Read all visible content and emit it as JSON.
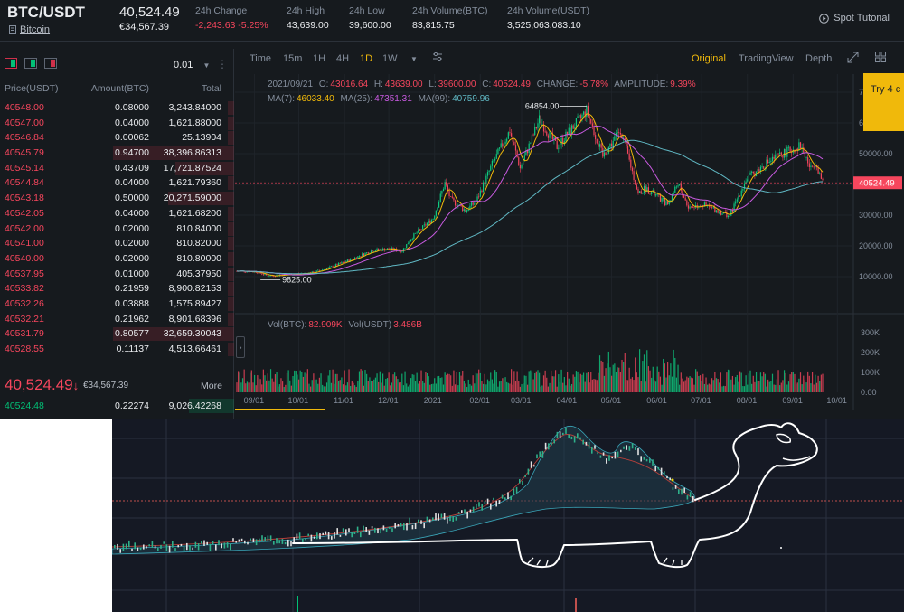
{
  "header": {
    "pair": "BTC/USDT",
    "coin_name": "Bitcoin",
    "last_price": "40,524.49",
    "last_price_eur": "€34,567.39",
    "change_label": "24h Change",
    "change_value": "-2,243.63 -5.25%",
    "high_label": "24h High",
    "high_value": "43,639.00",
    "low_label": "24h Low",
    "low_value": "39,600.00",
    "vol_btc_label": "24h Volume(BTC)",
    "vol_btc_value": "83,815.75",
    "vol_usdt_label": "24h Volume(USDT)",
    "vol_usdt_value": "3,525,063,083.10",
    "tutorial": "Spot Tutorial",
    "colors": {
      "up": "#02c076",
      "down": "#f6465d",
      "accent": "#f0b90b",
      "bg": "#161a1e"
    }
  },
  "orderbook": {
    "precision": "0.01",
    "col_price": "Price(USDT)",
    "col_amount": "Amount(BTC)",
    "col_total": "Total",
    "asks": [
      {
        "price": "40548.00",
        "amount": "0.08000",
        "total": "3,243.84000",
        "depth": 0.02
      },
      {
        "price": "40547.00",
        "amount": "0.04000",
        "total": "1,621.88000",
        "depth": 0.02
      },
      {
        "price": "40546.84",
        "amount": "0.00062",
        "total": "25.13904",
        "depth": 0.02
      },
      {
        "price": "40545.79",
        "amount": "0.94700",
        "total": "38,396.86313",
        "depth": 1.0
      },
      {
        "price": "40545.14",
        "amount": "0.43709",
        "total": "17,721.87524",
        "depth": 0.47
      },
      {
        "price": "40544.84",
        "amount": "0.04000",
        "total": "1,621.79360",
        "depth": 0.02
      },
      {
        "price": "40543.18",
        "amount": "0.50000",
        "total": "20,271.59000",
        "depth": 0.53
      },
      {
        "price": "40542.05",
        "amount": "0.04000",
        "total": "1,621.68200",
        "depth": 0.02
      },
      {
        "price": "40542.00",
        "amount": "0.02000",
        "total": "810.84000",
        "depth": 0.02
      },
      {
        "price": "40541.00",
        "amount": "0.02000",
        "total": "810.82000",
        "depth": 0.02
      },
      {
        "price": "40540.00",
        "amount": "0.02000",
        "total": "810.80000",
        "depth": 0.02
      },
      {
        "price": "40537.95",
        "amount": "0.01000",
        "total": "405.37950",
        "depth": 0.02
      },
      {
        "price": "40533.82",
        "amount": "0.21959",
        "total": "8,900.82153",
        "depth": 0.02
      },
      {
        "price": "40532.26",
        "amount": "0.03888",
        "total": "1,575.89427",
        "depth": 0.02
      },
      {
        "price": "40532.21",
        "amount": "0.21962",
        "total": "8,901.68396",
        "depth": 0.02
      },
      {
        "price": "40531.79",
        "amount": "0.80577",
        "total": "32,659.30043",
        "depth": 1.0
      },
      {
        "price": "40528.55",
        "amount": "0.11137",
        "total": "4,513.66461",
        "depth": 0.02
      }
    ],
    "last_price": "40,524.49",
    "last_arrow": "↓",
    "last_price_eur": "€34,567.39",
    "more": "More",
    "bid": {
      "price": "40524.48",
      "amount": "0.22274",
      "total": "9,026.42268"
    }
  },
  "toolbar": {
    "intervals": [
      "Time",
      "15m",
      "1H",
      "4H",
      "1D",
      "1W"
    ],
    "active_interval": "1D",
    "views": [
      "Original",
      "TradingView",
      "Depth"
    ],
    "active_view": "Original",
    "try_banner": "Try 4 c"
  },
  "legend": {
    "date": "2021/09/21",
    "o_label": "O:",
    "o": "43016.64",
    "h_label": "H:",
    "h": "43639.00",
    "l_label": "L:",
    "l": "39600.00",
    "c_label": "C:",
    "c": "40524.49",
    "change_label": "CHANGE:",
    "change": "-5.78%",
    "amp_label": "AMPLITUDE:",
    "amp": "9.39%",
    "ma7_label": "MA(7):",
    "ma7": "46033.40",
    "ma25_label": "MA(25):",
    "ma25": "47351.31",
    "ma99_label": "MA(99):",
    "ma99": "40759.96",
    "vol_btc_label": "Vol(BTC):",
    "vol_btc": "82.909K",
    "vol_usdt_label": "Vol(USDT)",
    "vol_usdt": "3.486B",
    "ma7_color": "#f0b90b",
    "ma25_color": "#c85ae0",
    "ma99_color": "#60b8c4"
  },
  "chart_data": {
    "type": "candlestick",
    "x_ticks": [
      "09/01",
      "10/01",
      "11/01",
      "12/01",
      "2021",
      "02/01",
      "03/01",
      "04/01",
      "05/01",
      "06/01",
      "07/01",
      "08/01",
      "09/01",
      "10/01"
    ],
    "y_ticks": [
      "10000.00",
      "20000.00",
      "30000.00",
      "40000.00",
      "50000.00",
      "60000.00",
      "70000.00"
    ],
    "vol_ticks": [
      "0.00",
      "100K",
      "200K",
      "300K"
    ],
    "price_tag": "40524.49",
    "annotation_high": "64854.00",
    "annotation_low": "9825.00",
    "ylim": [
      0,
      70000
    ],
    "close_path": [
      [
        "2020-08-20",
        11800
      ],
      [
        "2020-09-01",
        11700
      ],
      [
        "2020-09-10",
        10300
      ],
      [
        "2020-09-25",
        10700
      ],
      [
        "2020-10-10",
        11300
      ],
      [
        "2020-10-21",
        12800
      ],
      [
        "2020-11-05",
        15500
      ],
      [
        "2020-11-20",
        18600
      ],
      [
        "2020-12-01",
        19000
      ],
      [
        "2020-12-10",
        18400
      ],
      [
        "2020-12-17",
        23000
      ],
      [
        "2020-12-31",
        29000
      ],
      [
        "2021-01-08",
        40500
      ],
      [
        "2021-01-12",
        35000
      ],
      [
        "2021-01-22",
        31500
      ],
      [
        "2021-01-29",
        34300
      ],
      [
        "2021-02-09",
        46500
      ],
      [
        "2021-02-21",
        57500
      ],
      [
        "2021-02-28",
        45200
      ],
      [
        "2021-03-13",
        61200
      ],
      [
        "2021-03-25",
        52300
      ],
      [
        "2021-04-14",
        64000
      ],
      [
        "2021-04-25",
        49100
      ],
      [
        "2021-05-07",
        58000
      ],
      [
        "2021-05-12",
        49500
      ],
      [
        "2021-05-19",
        37000
      ],
      [
        "2021-05-24",
        38800
      ],
      [
        "2021-06-08",
        33500
      ],
      [
        "2021-06-15",
        40500
      ],
      [
        "2021-06-22",
        32500
      ],
      [
        "2021-07-01",
        33500
      ],
      [
        "2021-07-20",
        29800
      ],
      [
        "2021-07-31",
        41500
      ],
      [
        "2021-08-14",
        47000
      ],
      [
        "2021-08-23",
        49500
      ],
      [
        "2021-09-06",
        52700
      ],
      [
        "2021-09-13",
        44900
      ],
      [
        "2021-09-16",
        47700
      ],
      [
        "2021-09-21",
        40524
      ]
    ]
  }
}
